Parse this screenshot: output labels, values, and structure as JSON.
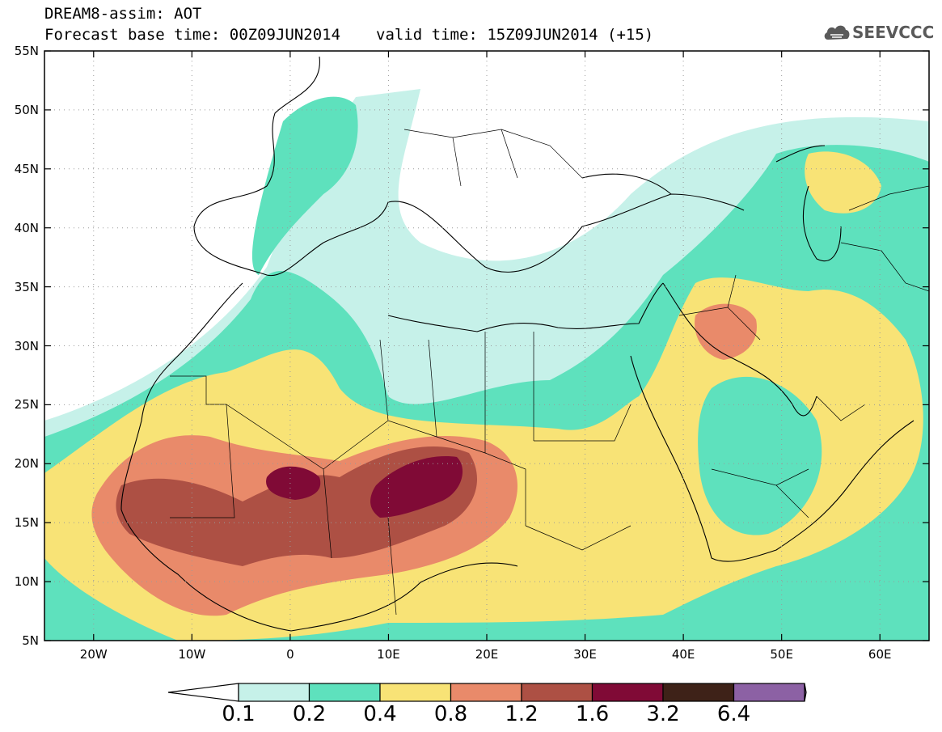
{
  "title": {
    "line1": "DREAM8-assim: AOT",
    "forecast_base": "Forecast base time: 00Z09JUN2014",
    "valid": "valid time: 15Z09JUN2014 (+15)"
  },
  "logo": {
    "text": "SEEVCCC",
    "icon": "cloud-icon"
  },
  "lat_labels": [
    "55N",
    "50N",
    "45N",
    "40N",
    "35N",
    "30N",
    "25N",
    "20N",
    "15N",
    "10N",
    "5N"
  ],
  "lon_labels": [
    "20W",
    "10W",
    "0",
    "10E",
    "20E",
    "30E",
    "40E",
    "50E",
    "60E"
  ],
  "extent": {
    "lon": [
      -25,
      65
    ],
    "lat": [
      5,
      55
    ]
  },
  "colorbar": {
    "labels": [
      "0.1",
      "0.2",
      "0.4",
      "0.8",
      "1.2",
      "1.6",
      "3.2",
      "6.4"
    ],
    "colors": [
      "#ffffff",
      "#c6f1e9",
      "#5ee1bd",
      "#f8e376",
      "#e98a6a",
      "#ad5044",
      "#800a36",
      "#3e2218",
      "#8c61a4"
    ]
  }
}
